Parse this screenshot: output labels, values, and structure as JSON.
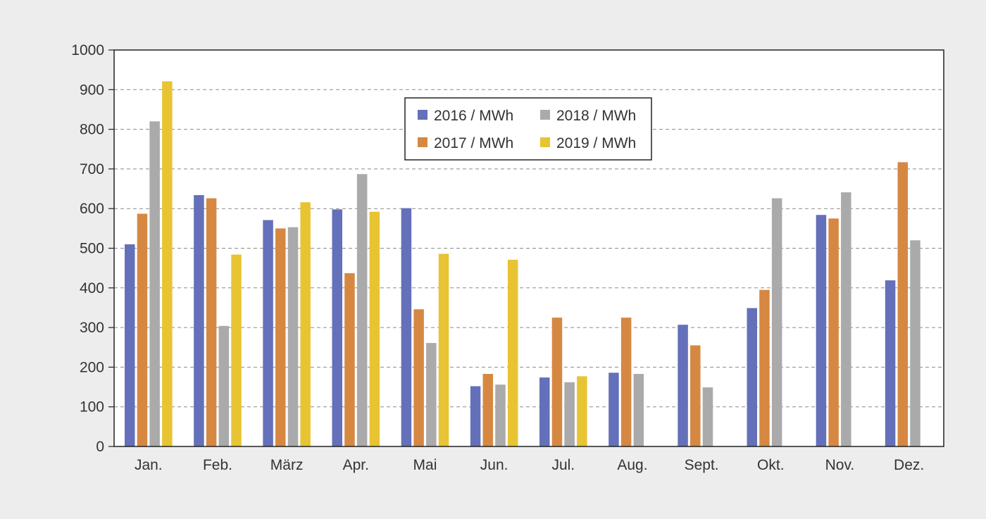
{
  "chart_data": {
    "type": "bar",
    "categories": [
      "Jan.",
      "Feb.",
      "März",
      "Apr.",
      "Mai",
      "Jun.",
      "Jul.",
      "Aug.",
      "Sept.",
      "Okt.",
      "Nov.",
      "Dez."
    ],
    "series": [
      {
        "name": "2016 / MWh",
        "color": "#6470b9",
        "values": [
          510,
          634,
          571,
          598,
          601,
          152,
          174,
          186,
          307,
          349,
          584,
          419
        ]
      },
      {
        "name": "2017 / MWh",
        "color": "#d68842",
        "values": [
          587,
          626,
          550,
          437,
          346,
          183,
          325,
          325,
          255,
          395,
          575,
          717
        ]
      },
      {
        "name": "2018 / MWh",
        "color": "#aaaaaa",
        "values": [
          820,
          304,
          553,
          687,
          261,
          156,
          162,
          183,
          149,
          626,
          641,
          520
        ]
      },
      {
        "name": "2019 / MWh",
        "color": "#e8c433",
        "values": [
          921,
          484,
          616,
          592,
          486,
          471,
          177,
          null,
          null,
          null,
          null,
          null
        ]
      }
    ],
    "yticks": [
      0,
      100,
      200,
      300,
      400,
      500,
      600,
      700,
      800,
      900,
      1000
    ],
    "ylim": [
      0,
      1000
    ],
    "grid": "horizontal-dashed",
    "legend_position": "top-center",
    "title": "",
    "xlabel": "",
    "ylabel": ""
  }
}
